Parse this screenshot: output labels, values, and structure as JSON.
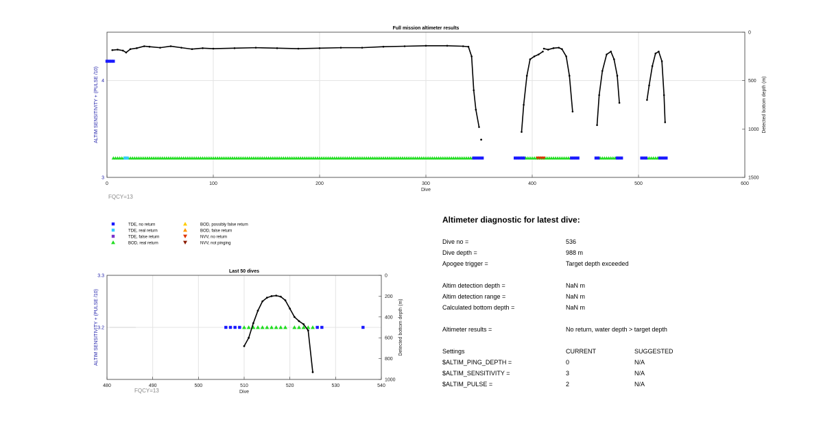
{
  "colors": {
    "tde_no_return": "#1a1aff",
    "tde_real_return": "#33ccff",
    "tde_false_return": "#7a33cc",
    "bod_real_return": "#22dd22",
    "bod_possibly_false": "#ffcc00",
    "bod_false_return": "#ff9900",
    "nvv_no_return": "#dd3300",
    "nvv_not_pinging": "#8b1a00",
    "depth_line": "#000000",
    "left_axis": "#2222aa",
    "fqcy_text": "#888888"
  },
  "chart_data": [
    {
      "type": "scatter",
      "title": "Full mission altimeter results",
      "xlabel": "Dive",
      "ylabel": "ALTIM SENSITIVITY + (PULSE /10)",
      "y2label": "Detected bottom depth (m)",
      "xlim": [
        0,
        600
      ],
      "ylim": [
        3,
        4.5
      ],
      "y2lim": [
        0,
        1500
      ],
      "y2_reversed": true,
      "xticks": [
        0,
        100,
        200,
        300,
        400,
        500,
        600
      ],
      "yticks": [
        3,
        4
      ],
      "y2ticks": [
        0,
        500,
        1000,
        1500
      ],
      "grid": true,
      "annotation": "FQCY=13",
      "sensitivity_series": [
        {
          "name": "TDE, no return",
          "y": 4.2,
          "x_ranges": [
            [
              0,
              6
            ]
          ]
        },
        {
          "name": "BOD, real return",
          "y": 3.2,
          "x_ranges": [
            [
              6,
              345
            ],
            [
              390,
              437
            ],
            [
              462,
              480
            ],
            [
              508,
              520
            ]
          ]
        },
        {
          "name": "TDE, real return",
          "y": 3.2,
          "x_ranges": [
            [
              17,
              19
            ]
          ]
        },
        {
          "name": "TDE, no return",
          "y": 3.2,
          "x_ranges": [
            [
              345,
              353
            ],
            [
              384,
              392
            ],
            [
              437,
              443
            ],
            [
              460,
              463
            ],
            [
              480,
              485
            ],
            [
              503,
              508
            ],
            [
              520,
              526
            ]
          ]
        },
        {
          "name": "NVV, no return",
          "y": 3.2,
          "x_ranges": [
            [
              405,
              412
            ]
          ]
        }
      ],
      "depth_segments": [
        {
          "x": [
            5,
            10,
            15,
            18,
            22,
            28,
            35,
            40,
            50,
            60,
            70,
            80,
            90,
            100,
            120,
            140,
            160,
            180,
            200,
            220,
            240,
            260,
            280,
            300,
            320,
            335,
            340,
            343,
            345,
            347,
            350
          ],
          "y": [
            185,
            180,
            190,
            210,
            175,
            165,
            145,
            150,
            160,
            145,
            160,
            175,
            165,
            170,
            165,
            160,
            165,
            170,
            165,
            160,
            160,
            150,
            145,
            140,
            140,
            145,
            150,
            250,
            600,
            800,
            980
          ]
        },
        {
          "x": [
            390,
            392,
            395,
            398,
            402,
            406,
            410
          ],
          "y": [
            1030,
            750,
            450,
            280,
            250,
            230,
            200
          ]
        },
        {
          "x": [
            411,
            415,
            420,
            425,
            428,
            432,
            435,
            438
          ],
          "y": [
            170,
            180,
            165,
            160,
            175,
            250,
            450,
            820
          ]
        },
        {
          "x": [
            461,
            463,
            466,
            470,
            474,
            477,
            480,
            482
          ],
          "y": [
            960,
            650,
            400,
            230,
            200,
            280,
            450,
            730
          ]
        },
        {
          "x": [
            508,
            510,
            513,
            516,
            519,
            522,
            524,
            525
          ],
          "y": [
            700,
            550,
            350,
            220,
            200,
            300,
            650,
            930
          ]
        }
      ],
      "outlier_points": [
        {
          "x": 352,
          "y": 1110
        }
      ]
    },
    {
      "type": "scatter",
      "title": "Last 50 dives",
      "xlabel": "Dive",
      "ylabel": "ALTIM SENSITIVITY + (PULSE /10)",
      "y2label": "Detected bottom depth (m)",
      "xlim": [
        480,
        540
      ],
      "ylim": [
        3.1,
        3.3
      ],
      "y2lim": [
        0,
        1000
      ],
      "y2_reversed": true,
      "xticks": [
        480,
        490,
        500,
        510,
        520,
        530,
        540
      ],
      "yticks": [
        3.2,
        3.3
      ],
      "y2ticks": [
        0,
        200,
        400,
        600,
        800,
        1000
      ],
      "grid": true,
      "annotation": "FQCY=13",
      "points": [
        {
          "x": 506,
          "y": 3.2,
          "s": "TDE, no return"
        },
        {
          "x": 507,
          "y": 3.2,
          "s": "TDE, no return"
        },
        {
          "x": 508,
          "y": 3.2,
          "s": "TDE, no return"
        },
        {
          "x": 509,
          "y": 3.2,
          "s": "TDE, no return"
        },
        {
          "x": 510,
          "y": 3.2,
          "s": "BOD, real return"
        },
        {
          "x": 511,
          "y": 3.2,
          "s": "BOD, real return"
        },
        {
          "x": 512,
          "y": 3.2,
          "s": "BOD, real return"
        },
        {
          "x": 513,
          "y": 3.2,
          "s": "BOD, real return"
        },
        {
          "x": 514,
          "y": 3.2,
          "s": "BOD, real return"
        },
        {
          "x": 515,
          "y": 3.2,
          "s": "BOD, real return"
        },
        {
          "x": 516,
          "y": 3.2,
          "s": "BOD, real return"
        },
        {
          "x": 517,
          "y": 3.2,
          "s": "BOD, real return"
        },
        {
          "x": 518,
          "y": 3.2,
          "s": "BOD, real return"
        },
        {
          "x": 519,
          "y": 3.2,
          "s": "BOD, real return"
        },
        {
          "x": 521,
          "y": 3.2,
          "s": "BOD, real return"
        },
        {
          "x": 522,
          "y": 3.2,
          "s": "BOD, real return"
        },
        {
          "x": 523,
          "y": 3.2,
          "s": "BOD, real return"
        },
        {
          "x": 524,
          "y": 3.2,
          "s": "BOD, real return"
        },
        {
          "x": 525,
          "y": 3.2,
          "s": "BOD, real return"
        },
        {
          "x": 526,
          "y": 3.2,
          "s": "TDE, no return"
        },
        {
          "x": 527,
          "y": 3.2,
          "s": "TDE, no return"
        },
        {
          "x": 536,
          "y": 3.2,
          "s": "TDE, no return"
        }
      ],
      "depth": {
        "x": [
          510,
          511,
          512,
          513,
          514,
          515,
          516,
          517,
          518,
          519,
          520,
          521,
          522,
          523,
          524,
          525
        ],
        "y": [
          680,
          600,
          460,
          340,
          250,
          215,
          200,
          195,
          205,
          240,
          320,
          400,
          440,
          470,
          530,
          930
        ]
      }
    }
  ],
  "legend": {
    "col1": [
      "TDE, no return",
      "TDE, real return",
      "TDE, false return",
      "BOD, real return"
    ],
    "col2": [
      "BOD, possibly false return",
      "BOD, false return",
      "NVV, no return",
      "NVV, not pinging"
    ]
  },
  "diagnostic": {
    "title": "Altimeter diagnostic for latest dive:",
    "rows": [
      {
        "label": "Dive no =",
        "value": "536",
        "extra": ""
      },
      {
        "label": "Dive depth =",
        "value": "988 m",
        "extra": ""
      },
      {
        "label": "Apogee trigger =",
        "value": "Target depth exceeded",
        "extra": ""
      },
      {
        "label": "Altim detection depth =",
        "value": "NaN m",
        "extra": ""
      },
      {
        "label": "Altim detection range =",
        "value": "NaN m",
        "extra": ""
      },
      {
        "label": "Calculated bottom depth =",
        "value": "NaN m",
        "extra": ""
      },
      {
        "label": "Altimeter results =",
        "value": "No return, water depth > target depth",
        "extra": ""
      },
      {
        "label": "Settings",
        "value": "CURRENT",
        "extra": "SUGGESTED"
      },
      {
        "label": "$ALTIM_PING_DEPTH =",
        "value": "0",
        "extra": "N/A"
      },
      {
        "label": "$ALTIM_SENSITIVITY =",
        "value": "3",
        "extra": "N/A"
      },
      {
        "label": "$ALTIM_PULSE =",
        "value": "2",
        "extra": "N/A"
      }
    ]
  }
}
